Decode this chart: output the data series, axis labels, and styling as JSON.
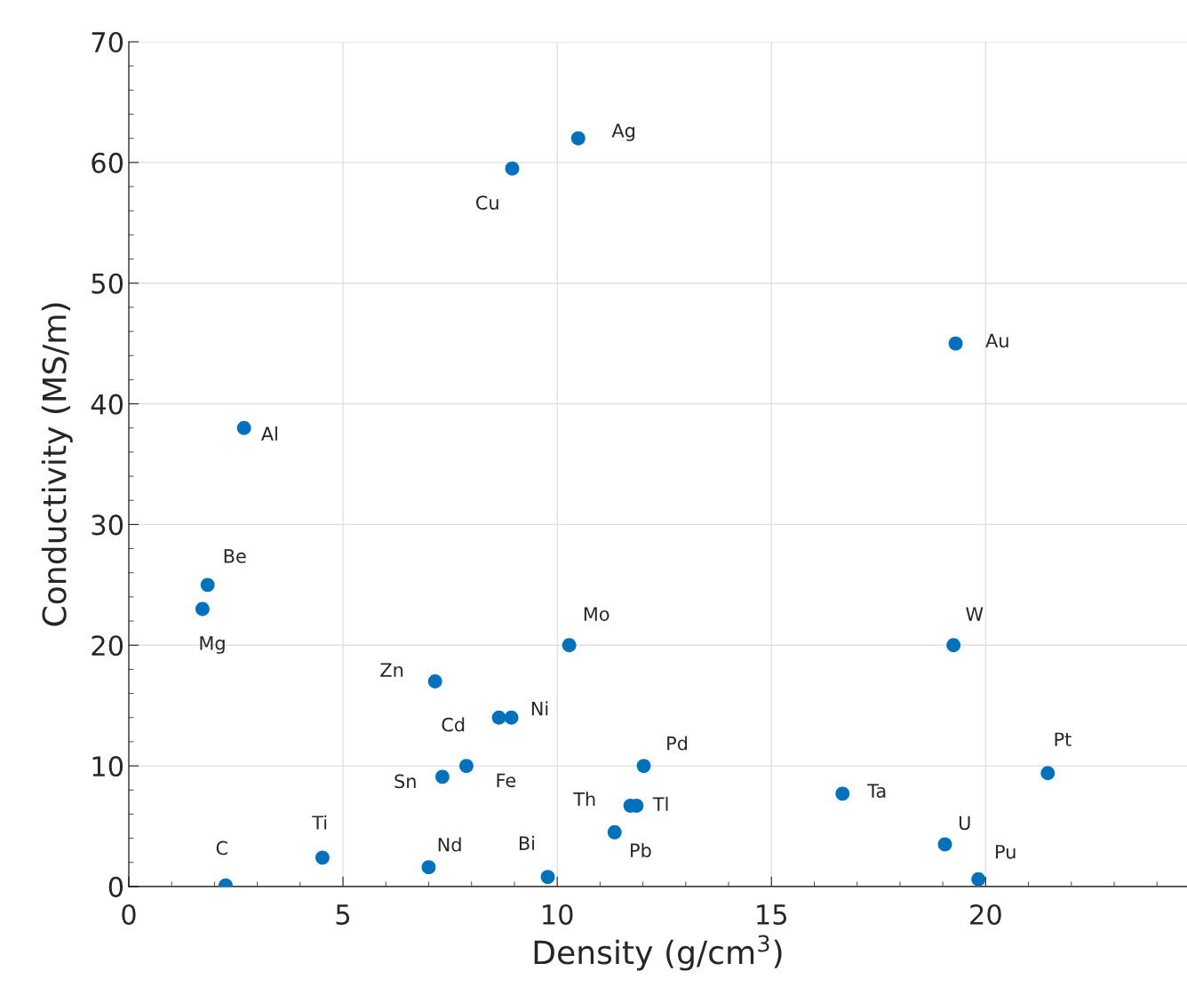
{
  "chart_data": {
    "type": "scatter",
    "xlabel": "Density (g/cm$^{3}$)",
    "ylabel": "Conductivity (MS/m)",
    "x": [
      2.26,
      4.52,
      7.0,
      9.78,
      7.32,
      7.88,
      8.64,
      8.93,
      7.15,
      8.95,
      10.49,
      10.28,
      12.02,
      11.71,
      11.85,
      11.34,
      16.66,
      21.45,
      19.05,
      19.83,
      19.25,
      19.3,
      2.69,
      1.84,
      1.72
    ],
    "series": [
      {
        "color": "#0072bd",
        "values": [
          0.1,
          2.4,
          1.6,
          0.8,
          9.1,
          10,
          14,
          14,
          17,
          59.5,
          62,
          20,
          10,
          6.7,
          6.7,
          4.5,
          7.7,
          9.4,
          3.5,
          0.6,
          20,
          45,
          38,
          25,
          23
        ]
      }
    ],
    "annotations": [
      {
        "text": "C",
        "x": 2.26,
        "y": 0.1
      },
      {
        "text": "Ti",
        "x": 4.52,
        "y": 2.4
      },
      {
        "text": "Nd",
        "x": 7.0,
        "y": 1.6
      },
      {
        "text": "Bi",
        "x": 9.78,
        "y": 0.8
      },
      {
        "text": "Sn",
        "x": 7.32,
        "y": 9.1
      },
      {
        "text": "Fe",
        "x": 7.88,
        "y": 10
      },
      {
        "text": "Cd",
        "x": 8.64,
        "y": 14
      },
      {
        "text": "Ni",
        "x": 8.93,
        "y": 14
      },
      {
        "text": "Zn",
        "x": 7.15,
        "y": 17
      },
      {
        "text": "Cu",
        "x": 8.95,
        "y": 59.5
      },
      {
        "text": "Ag",
        "x": 10.49,
        "y": 62
      },
      {
        "text": "Mo",
        "x": 10.28,
        "y": 20
      },
      {
        "text": "Pd",
        "x": 12.02,
        "y": 10
      },
      {
        "text": "Th",
        "x": 11.71,
        "y": 6.7
      },
      {
        "text": "Tl",
        "x": 11.85,
        "y": 6.7
      },
      {
        "text": "Pb",
        "x": 11.34,
        "y": 4.5
      },
      {
        "text": "Ta",
        "x": 16.66,
        "y": 7.7
      },
      {
        "text": "Pt",
        "x": 21.45,
        "y": 9.4
      },
      {
        "text": "U",
        "x": 19.05,
        "y": 3.5
      },
      {
        "text": "Pu",
        "x": 19.83,
        "y": 0.6
      },
      {
        "text": "W",
        "x": 19.25,
        "y": 20
      },
      {
        "text": "Au",
        "x": 19.3,
        "y": 45
      },
      {
        "text": "Al",
        "x": 2.69,
        "y": 38
      },
      {
        "text": "Be",
        "x": 1.84,
        "y": 25
      },
      {
        "text": "Mg",
        "x": 1.72,
        "y": 23
      }
    ],
    "xlim": [
      0,
      24.7
    ],
    "xticks": [
      0,
      5,
      10,
      15,
      20
    ],
    "ylim": [
      0,
      70
    ],
    "yticks": [
      0,
      10,
      20,
      30,
      40,
      50,
      60,
      70
    ],
    "grid": true,
    "marker": "circle"
  }
}
